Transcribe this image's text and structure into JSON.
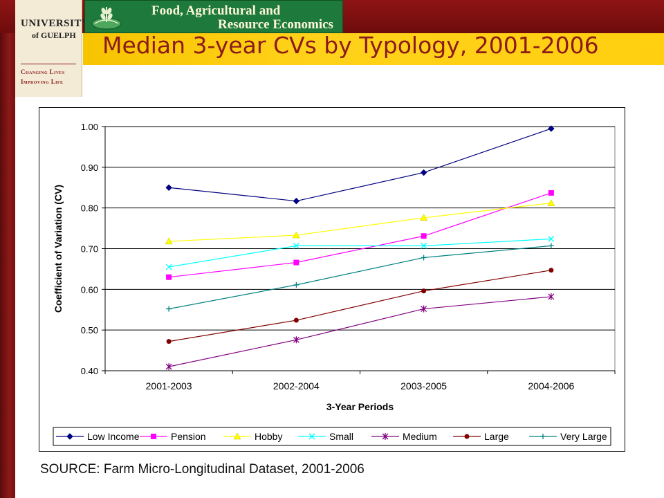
{
  "header": {
    "university_name": "UNIVERSITY",
    "university_city": "of GUELPH",
    "tagline_1": "Changing Lives",
    "tagline_2": "Improving Life",
    "department_line1": "Food, Agricultural and",
    "department_line2": "Resource Economics"
  },
  "slide": {
    "title": "Median 3-year CVs by Typology, 2001-2006",
    "source": "SOURCE: Farm Micro-Longitudinal Dataset, 2001-2006"
  },
  "chart_data": {
    "type": "line",
    "title": "",
    "xlabel": "3-Year Periods",
    "ylabel": "Coefficient of Variation (CV)",
    "categories": [
      "2001-2003",
      "2002-2004",
      "2003-2005",
      "2004-2006"
    ],
    "yticks": [
      "0.40",
      "0.50",
      "0.60",
      "0.70",
      "0.80",
      "0.90",
      "1.00"
    ],
    "ylim": [
      0.4,
      1.0
    ],
    "grid": true,
    "legend_position": "bottom",
    "series": [
      {
        "name": "Low Income",
        "color": "#000080",
        "marker": "diamond",
        "values": [
          0.85,
          0.817,
          0.887,
          0.995
        ]
      },
      {
        "name": "Pension",
        "color": "#ff00ff",
        "marker": "square",
        "values": [
          0.63,
          0.666,
          0.731,
          0.837
        ]
      },
      {
        "name": "Hobby",
        "color": "#ffff00",
        "marker": "triangle",
        "values": [
          0.718,
          0.733,
          0.776,
          0.812
        ]
      },
      {
        "name": "Small",
        "color": "#00ffff",
        "marker": "x",
        "values": [
          0.655,
          0.707,
          0.707,
          0.724
        ]
      },
      {
        "name": "Medium",
        "color": "#800080",
        "marker": "star",
        "values": [
          0.41,
          0.476,
          0.552,
          0.582
        ]
      },
      {
        "name": "Large",
        "color": "#800000",
        "marker": "circle",
        "values": [
          0.472,
          0.524,
          0.596,
          0.647
        ]
      },
      {
        "name": "Very Large",
        "color": "#008080",
        "marker": "plus",
        "values": [
          0.552,
          0.611,
          0.678,
          0.707
        ]
      }
    ]
  }
}
